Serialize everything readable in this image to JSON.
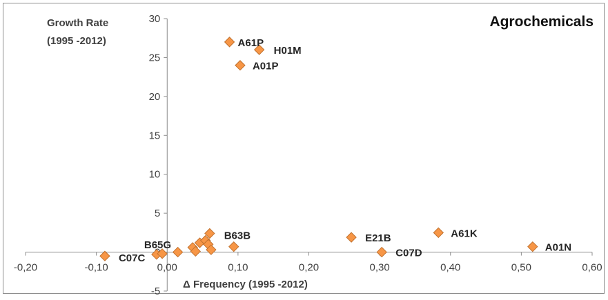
{
  "chart_data": {
    "type": "scatter",
    "title": "Agrochemicals",
    "ylabel_lines": [
      "Growth Rate",
      "(1995 -2012)"
    ],
    "xlabel": "Δ Frequency (1995 -2012)",
    "xlim": [
      -0.2,
      0.6
    ],
    "ylim": [
      -5,
      30
    ],
    "xticks": [
      -0.2,
      -0.1,
      0.0,
      0.1,
      0.2,
      0.3,
      0.4,
      0.5,
      0.6
    ],
    "xtick_labels": [
      "-0,20",
      "-0,10",
      "0,00",
      "0,10",
      "0,20",
      "0,30",
      "0,40",
      "0,50",
      "0,60"
    ],
    "yticks": [
      -5,
      0,
      5,
      10,
      15,
      20,
      25,
      30
    ],
    "ytick_labels": [
      "-5",
      "0",
      "5",
      "10",
      "15",
      "20",
      "25",
      "30"
    ],
    "grid": false,
    "marker": "diamond",
    "marker_color": "#F79646",
    "marker_edge_color": "#C0712E",
    "points": [
      {
        "x": 0.088,
        "y": 27.0,
        "label": "A61P"
      },
      {
        "x": 0.13,
        "y": 26.0,
        "label": "H01M"
      },
      {
        "x": 0.103,
        "y": 24.0,
        "label": "A01P"
      },
      {
        "x": -0.088,
        "y": -0.5,
        "label": "C07C"
      },
      {
        "x": -0.015,
        "y": -0.3,
        "label": ""
      },
      {
        "x": -0.007,
        "y": -0.2,
        "label": "B65G"
      },
      {
        "x": 0.015,
        "y": 0.0,
        "label": ""
      },
      {
        "x": 0.036,
        "y": 0.6,
        "label": ""
      },
      {
        "x": 0.04,
        "y": 0.1,
        "label": ""
      },
      {
        "x": 0.046,
        "y": 1.2,
        "label": ""
      },
      {
        "x": 0.054,
        "y": 1.5,
        "label": ""
      },
      {
        "x": 0.058,
        "y": 1.0,
        "label": ""
      },
      {
        "x": 0.06,
        "y": 2.4,
        "label": ""
      },
      {
        "x": 0.062,
        "y": 0.3,
        "label": ""
      },
      {
        "x": 0.094,
        "y": 0.7,
        "label": "B63B"
      },
      {
        "x": 0.26,
        "y": 1.9,
        "label": "E21B"
      },
      {
        "x": 0.303,
        "y": 0.0,
        "label": "C07D"
      },
      {
        "x": 0.383,
        "y": 2.5,
        "label": "A61K"
      },
      {
        "x": 0.516,
        "y": 0.7,
        "label": "A01N"
      }
    ]
  }
}
